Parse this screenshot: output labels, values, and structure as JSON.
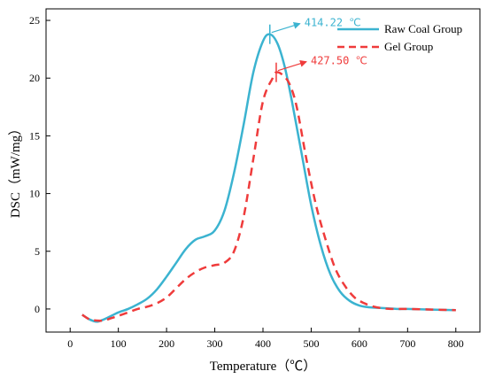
{
  "chart_data": {
    "type": "line",
    "xlabel": "Temperature（℃）",
    "ylabel": "DSC（mW/mg）",
    "xlim": [
      -50,
      850
    ],
    "ylim": [
      -2,
      26
    ],
    "x_ticks": [
      0,
      100,
      200,
      300,
      400,
      500,
      600,
      700,
      800
    ],
    "x_tick_labels": [
      "0",
      "100",
      "200",
      "300",
      "400",
      "500",
      "600",
      "700",
      "800"
    ],
    "y_ticks": [
      0,
      5,
      10,
      15,
      20,
      25
    ],
    "y_tick_labels": [
      "0",
      "5",
      "10",
      "15",
      "20",
      "25"
    ],
    "grid": false,
    "legend_position": "top-right",
    "series": [
      {
        "name": "Raw Coal Group",
        "color": "#3bb3d0",
        "style": "solid",
        "x": [
          25,
          40,
          55,
          70,
          85,
          100,
          120,
          140,
          160,
          180,
          200,
          220,
          240,
          260,
          280,
          300,
          320,
          340,
          360,
          380,
          400,
          414.22,
          430,
          445,
          460,
          480,
          500,
          520,
          540,
          560,
          580,
          600,
          620,
          640,
          660,
          680,
          700,
          750,
          800
        ],
        "values": [
          -0.5,
          -0.9,
          -1.1,
          -0.9,
          -0.6,
          -0.3,
          0.0,
          0.4,
          0.9,
          1.7,
          2.8,
          4.0,
          5.2,
          6.0,
          6.3,
          6.8,
          8.5,
          11.8,
          16.0,
          20.5,
          23.2,
          23.8,
          23.0,
          21.0,
          18.0,
          13.5,
          9.0,
          5.5,
          3.0,
          1.5,
          0.7,
          0.3,
          0.15,
          0.1,
          0.05,
          0.0,
          0.0,
          -0.05,
          -0.1
        ]
      },
      {
        "name": "Gel Group",
        "color": "#ef3b3b",
        "style": "dashed",
        "x": [
          25,
          40,
          55,
          70,
          85,
          100,
          120,
          140,
          160,
          180,
          200,
          220,
          240,
          260,
          280,
          300,
          320,
          340,
          360,
          380,
          400,
          420,
          427.5,
          440,
          455,
          470,
          490,
          510,
          530,
          550,
          570,
          590,
          610,
          630,
          650,
          670,
          700,
          750,
          800
        ],
        "values": [
          -0.5,
          -0.9,
          -1.0,
          -1.0,
          -0.8,
          -0.6,
          -0.3,
          0.0,
          0.2,
          0.5,
          1.0,
          1.8,
          2.6,
          3.2,
          3.6,
          3.8,
          4.0,
          5.0,
          8.0,
          13.0,
          18.0,
          20.0,
          20.5,
          20.3,
          19.5,
          17.5,
          13.0,
          9.0,
          6.0,
          3.5,
          2.0,
          1.0,
          0.5,
          0.2,
          0.05,
          0.0,
          0.0,
          -0.05,
          -0.1
        ]
      }
    ],
    "annotations": [
      {
        "text": "414.22 ℃",
        "series": 0,
        "x": 414.22,
        "y": 23.8,
        "color": "#3bb3d0"
      },
      {
        "text": "427.50 ℃",
        "series": 1,
        "x": 427.5,
        "y": 20.5,
        "color": "#ef3b3b"
      }
    ]
  }
}
